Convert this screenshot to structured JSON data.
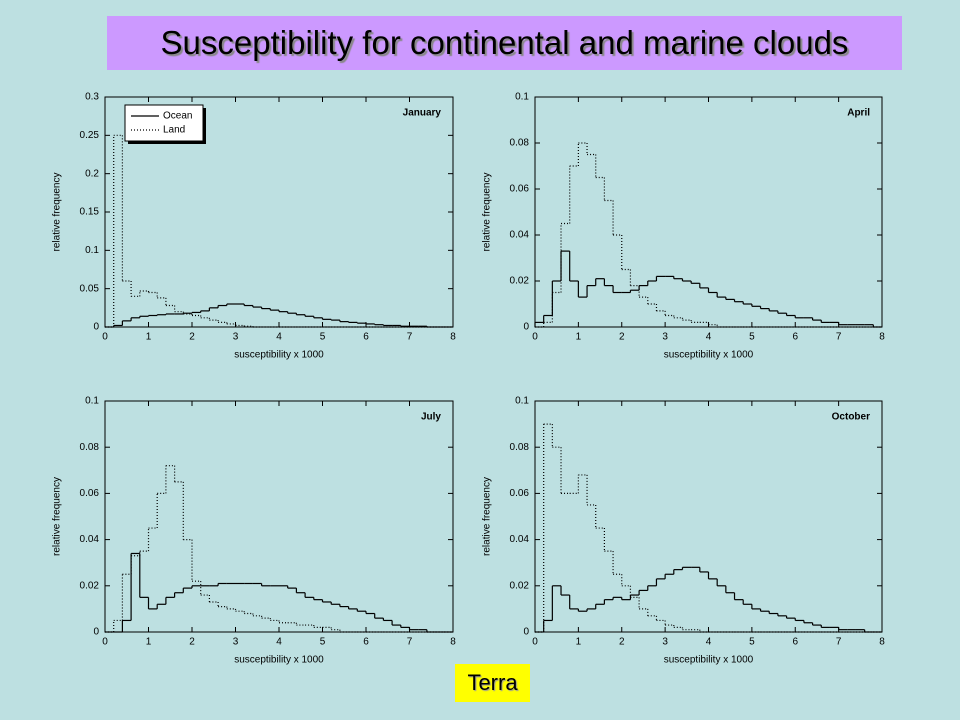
{
  "title": "Susceptibility for continental and marine clouds",
  "footer": "Terra",
  "chart_data": [
    {
      "type": "histogram",
      "label": "January",
      "xlabel": "susceptibility x 1000",
      "ylabel": "relative frequency",
      "xlim": [
        0,
        8
      ],
      "xticks": [
        0,
        1,
        2,
        3,
        4,
        5,
        6,
        7,
        8
      ],
      "ylim": [
        0,
        0.3
      ],
      "yticks": [
        0,
        0.05,
        0.1,
        0.15,
        0.2,
        0.25,
        0.3
      ],
      "legend": "upper left",
      "bins": [
        0,
        0.2,
        0.4,
        0.6,
        0.8,
        1,
        1.2,
        1.4,
        1.6,
        1.8,
        2,
        2.2,
        2.4,
        2.6,
        2.8,
        3,
        3.2,
        3.4,
        3.6,
        3.8,
        4,
        4.2,
        4.4,
        4.6,
        4.8,
        5,
        5.2,
        5.4,
        5.6,
        5.8,
        6,
        6.2,
        6.4,
        6.6,
        6.8,
        7,
        7.2,
        7.4,
        7.6,
        7.8,
        8
      ],
      "series": [
        {
          "name": "Ocean",
          "color": "#000000",
          "style": "solid",
          "values": [
            0,
            0.002,
            0.008,
            0.012,
            0.014,
            0.015,
            0.016,
            0.017,
            0.017,
            0.018,
            0.019,
            0.021,
            0.025,
            0.028,
            0.03,
            0.03,
            0.028,
            0.026,
            0.024,
            0.022,
            0.02,
            0.018,
            0.016,
            0.014,
            0.012,
            0.01,
            0.009,
            0.007,
            0.006,
            0.005,
            0.004,
            0.003,
            0.002,
            0.002,
            0.001,
            0.001,
            0.001,
            0,
            0,
            0
          ]
        },
        {
          "name": "Land",
          "color": "#000000",
          "style": "dotted",
          "values": [
            0,
            0.25,
            0.06,
            0.04,
            0.047,
            0.045,
            0.038,
            0.028,
            0.02,
            0.017,
            0.015,
            0.012,
            0.009,
            0.006,
            0.004,
            0.002,
            0.001,
            0,
            0,
            0,
            0,
            0,
            0,
            0,
            0,
            0,
            0,
            0,
            0,
            0,
            0,
            0,
            0,
            0,
            0,
            0,
            0,
            0,
            0,
            0
          ]
        }
      ]
    },
    {
      "type": "histogram",
      "label": "April",
      "xlabel": "susceptibility x 1000",
      "ylabel": "relative frequency",
      "xlim": [
        0,
        8
      ],
      "xticks": [
        0,
        1,
        2,
        3,
        4,
        5,
        6,
        7,
        8
      ],
      "ylim": [
        0,
        0.1
      ],
      "yticks": [
        0,
        0.02,
        0.04,
        0.06,
        0.08,
        0.1
      ],
      "bins": [
        0,
        0.2,
        0.4,
        0.6,
        0.8,
        1,
        1.2,
        1.4,
        1.6,
        1.8,
        2,
        2.2,
        2.4,
        2.6,
        2.8,
        3,
        3.2,
        3.4,
        3.6,
        3.8,
        4,
        4.2,
        4.4,
        4.6,
        4.8,
        5,
        5.2,
        5.4,
        5.6,
        5.8,
        6,
        6.2,
        6.4,
        6.6,
        6.8,
        7,
        7.2,
        7.4,
        7.6,
        7.8,
        8
      ],
      "series": [
        {
          "color": "#000000",
          "style": "solid",
          "values": [
            0.002,
            0.005,
            0.02,
            0.033,
            0.02,
            0.013,
            0.018,
            0.021,
            0.018,
            0.015,
            0.015,
            0.016,
            0.018,
            0.02,
            0.022,
            0.022,
            0.021,
            0.02,
            0.019,
            0.017,
            0.015,
            0.013,
            0.012,
            0.011,
            0.01,
            0.009,
            0.008,
            0.007,
            0.006,
            0.005,
            0.004,
            0.004,
            0.003,
            0.002,
            0.002,
            0.001,
            0.001,
            0.001,
            0.001,
            0
          ]
        },
        {
          "color": "#000000",
          "style": "dotted",
          "values": [
            0,
            0.002,
            0.015,
            0.045,
            0.07,
            0.08,
            0.075,
            0.065,
            0.055,
            0.04,
            0.025,
            0.018,
            0.013,
            0.01,
            0.007,
            0.005,
            0.004,
            0.003,
            0.002,
            0.002,
            0.001,
            0,
            0,
            0,
            0,
            0,
            0,
            0,
            0,
            0,
            0,
            0,
            0,
            0,
            0,
            0,
            0,
            0,
            0,
            0
          ]
        }
      ]
    },
    {
      "type": "histogram",
      "label": "July",
      "xlabel": "susceptibility x 1000",
      "ylabel": "relative frequency",
      "xlim": [
        0,
        8
      ],
      "xticks": [
        0,
        1,
        2,
        3,
        4,
        5,
        6,
        7,
        8
      ],
      "ylim": [
        0,
        0.1
      ],
      "yticks": [
        0,
        0.02,
        0.04,
        0.06,
        0.08,
        0.1
      ],
      "bins": [
        0,
        0.2,
        0.4,
        0.6,
        0.8,
        1,
        1.2,
        1.4,
        1.6,
        1.8,
        2,
        2.2,
        2.4,
        2.6,
        2.8,
        3,
        3.2,
        3.4,
        3.6,
        3.8,
        4,
        4.2,
        4.4,
        4.6,
        4.8,
        5,
        5.2,
        5.4,
        5.6,
        5.8,
        6,
        6.2,
        6.4,
        6.6,
        6.8,
        7,
        7.2,
        7.4,
        7.6,
        7.8,
        8
      ],
      "series": [
        {
          "color": "#000000",
          "style": "solid",
          "values": [
            0,
            0,
            0.005,
            0.034,
            0.015,
            0.01,
            0.012,
            0.015,
            0.017,
            0.019,
            0.02,
            0.02,
            0.02,
            0.021,
            0.021,
            0.021,
            0.021,
            0.021,
            0.02,
            0.02,
            0.02,
            0.019,
            0.017,
            0.015,
            0.014,
            0.013,
            0.012,
            0.011,
            0.01,
            0.009,
            0.008,
            0.006,
            0.005,
            0.003,
            0.002,
            0.001,
            0.001,
            0,
            0,
            0
          ]
        },
        {
          "color": "#000000",
          "style": "dotted",
          "values": [
            0,
            0.005,
            0.025,
            0.033,
            0.035,
            0.045,
            0.06,
            0.072,
            0.065,
            0.04,
            0.022,
            0.016,
            0.013,
            0.011,
            0.01,
            0.009,
            0.008,
            0.007,
            0.006,
            0.005,
            0.004,
            0.004,
            0.003,
            0.003,
            0.002,
            0.002,
            0.001,
            0,
            0,
            0,
            0,
            0,
            0,
            0,
            0,
            0,
            0,
            0,
            0,
            0
          ]
        }
      ]
    },
    {
      "type": "histogram",
      "label": "October",
      "xlabel": "susceptibility x 1000",
      "ylabel": "relative frequency",
      "xlim": [
        0,
        8
      ],
      "xticks": [
        0,
        1,
        2,
        3,
        4,
        5,
        6,
        7,
        8
      ],
      "ylim": [
        0,
        0.1
      ],
      "yticks": [
        0,
        0.02,
        0.04,
        0.06,
        0.08,
        0.1
      ],
      "bins": [
        0,
        0.2,
        0.4,
        0.6,
        0.8,
        1,
        1.2,
        1.4,
        1.6,
        1.8,
        2,
        2.2,
        2.4,
        2.6,
        2.8,
        3,
        3.2,
        3.4,
        3.6,
        3.8,
        4,
        4.2,
        4.4,
        4.6,
        4.8,
        5,
        5.2,
        5.4,
        5.6,
        5.8,
        6,
        6.2,
        6.4,
        6.6,
        6.8,
        7,
        7.2,
        7.4,
        7.6,
        7.8,
        8
      ],
      "series": [
        {
          "color": "#000000",
          "style": "solid",
          "values": [
            0,
            0.005,
            0.02,
            0.016,
            0.01,
            0.009,
            0.01,
            0.012,
            0.014,
            0.015,
            0.014,
            0.016,
            0.018,
            0.02,
            0.023,
            0.025,
            0.027,
            0.028,
            0.028,
            0.026,
            0.023,
            0.02,
            0.017,
            0.014,
            0.012,
            0.01,
            0.009,
            0.008,
            0.007,
            0.006,
            0.005,
            0.004,
            0.003,
            0.002,
            0.002,
            0.001,
            0.001,
            0.001,
            0,
            0
          ]
        },
        {
          "color": "#000000",
          "style": "dotted",
          "values": [
            0,
            0.09,
            0.08,
            0.06,
            0.06,
            0.068,
            0.055,
            0.045,
            0.035,
            0.025,
            0.02,
            0.015,
            0.01,
            0.007,
            0.005,
            0.003,
            0.002,
            0.001,
            0.001,
            0,
            0,
            0,
            0,
            0,
            0,
            0,
            0,
            0,
            0,
            0,
            0,
            0,
            0,
            0,
            0,
            0,
            0,
            0,
            0,
            0
          ]
        }
      ]
    }
  ]
}
